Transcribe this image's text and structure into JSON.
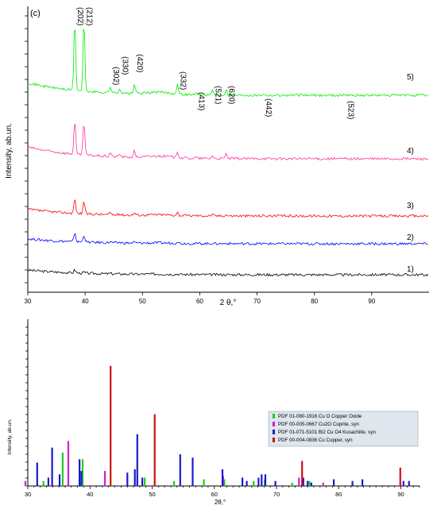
{
  "chart_data": [
    {
      "type": "line",
      "panel_label": "(c)",
      "xlabel": "2 θ,°",
      "ylabel": "Intensity, ab.un.",
      "xlim": [
        30,
        100
      ],
      "xticks": [
        30,
        40,
        50,
        60,
        70,
        80,
        90
      ],
      "peak_labels": [
        {
          "text": "(202)",
          "x": 38.2
        },
        {
          "text": "(212)",
          "x": 39.8
        },
        {
          "text": "(302)",
          "x": 44.4
        },
        {
          "text": "(330)",
          "x": 46.0
        },
        {
          "text": "(420)",
          "x": 48.6
        },
        {
          "text": "(332)",
          "x": 56.1
        },
        {
          "text": "(413)",
          "x": 59.3
        },
        {
          "text": "(521)",
          "x": 62.2
        },
        {
          "text": "(620)",
          "x": 64.6
        },
        {
          "text": "(442)",
          "x": 71.0
        },
        {
          "text": "(523)",
          "x": 85.4
        }
      ],
      "peak_positions": [
        38.2,
        39.8,
        44.4,
        46.0,
        48.6,
        56.1,
        59.3,
        62.2,
        64.6,
        71.0,
        85.4
      ],
      "series": [
        {
          "name": "1)",
          "color": "#000000",
          "scale": 0.35,
          "peaks": [
            0.15,
            0.05,
            0.02,
            0.0,
            0.0,
            0.02,
            0.0,
            0.0,
            0.0,
            0.0,
            0.0
          ]
        },
        {
          "name": "2)",
          "color": "#0000ff",
          "scale": 0.45,
          "peaks": [
            0.45,
            0.35,
            0.05,
            0.03,
            0.05,
            0.1,
            0.0,
            0.02,
            0.03,
            0.0,
            0.0
          ]
        },
        {
          "name": "3)",
          "color": "#ff0000",
          "scale": 0.55,
          "peaks": [
            0.7,
            0.6,
            0.1,
            0.05,
            0.12,
            0.15,
            0.02,
            0.06,
            0.06,
            0.02,
            0.0
          ]
        },
        {
          "name": "4)",
          "color": "#ff3399",
          "scale": 0.75,
          "peaks": [
            1.6,
            1.6,
            0.2,
            0.15,
            0.3,
            0.3,
            0.05,
            0.15,
            0.22,
            0.04,
            0.02
          ]
        },
        {
          "name": "5)",
          "color": "#00ee00",
          "scale": 0.8,
          "peaks": [
            3.4,
            3.4,
            0.3,
            0.25,
            0.45,
            0.45,
            0.08,
            0.2,
            0.3,
            0.07,
            0.04
          ]
        }
      ]
    },
    {
      "type": "bar",
      "xlabel": "2θ,°",
      "ylabel": "Intensity, ab.un.",
      "xlim": [
        30,
        93
      ],
      "ylim": [
        0,
        1
      ],
      "xticks": [
        30,
        40,
        50,
        60,
        70,
        80,
        90
      ],
      "legend_position": "right",
      "legend": [
        {
          "label": "PDF 01-080-1916 Cu O Copper Oxide",
          "color": "#22cc22"
        },
        {
          "label": "PDF 00-005-0667 Cu2O Cuprite, syn",
          "color": "#cc22cc"
        },
        {
          "label": "PDF 01-071-5101 Bi2 Cu O4 Kusachiite, syn",
          "color": "#1a1acc"
        },
        {
          "label": "PDF 00-004-0836 Cu Copper, syn",
          "color": "#cc1111"
        }
      ],
      "series": [
        {
          "name": "PDF 01-080-1916 Cu O Copper Oxide",
          "color": "#22cc22",
          "x": [
            32.5,
            35.6,
            38.8,
            48.8,
            53.5,
            58.3,
            61.6,
            66.3,
            68.1,
            72.5,
            75.3
          ],
          "values": [
            0.03,
            0.2,
            0.16,
            0.05,
            0.03,
            0.04,
            0.04,
            0.03,
            0.04,
            0.02,
            0.03
          ]
        },
        {
          "name": "PDF 00-005-0667 Cu2O Cuprite, syn",
          "color": "#cc22cc",
          "x": [
            29.6,
            36.5,
            42.4,
            61.4,
            73.6,
            77.5
          ],
          "values": [
            0.03,
            0.27,
            0.09,
            0.06,
            0.05,
            0.02
          ]
        },
        {
          "name": "PDF 01-071-5101 Bi2 Cu O4 Kusachiite, syn",
          "color": "#1a1acc",
          "x": [
            31.5,
            33.3,
            33.9,
            35.1,
            38.3,
            38.6,
            46.0,
            47.2,
            47.6,
            48.4,
            54.5,
            56.5,
            61.3,
            64.5,
            65.2,
            67.1,
            67.6,
            68.2,
            69.8,
            74.3,
            75.0,
            75.6,
            79.2,
            82.2,
            83.8,
            90.4,
            91.3
          ],
          "values": [
            0.14,
            0.05,
            0.23,
            0.07,
            0.16,
            0.09,
            0.08,
            0.1,
            0.31,
            0.05,
            0.19,
            0.17,
            0.1,
            0.05,
            0.03,
            0.05,
            0.07,
            0.07,
            0.03,
            0.05,
            0.03,
            0.02,
            0.04,
            0.03,
            0.04,
            0.03,
            0.03
          ]
        },
        {
          "name": "PDF 00-004-0836 Cu Copper, syn",
          "color": "#cc1111",
          "x": [
            43.3,
            50.4,
            74.1,
            89.9
          ],
          "values": [
            0.72,
            0.43,
            0.15,
            0.11
          ]
        }
      ]
    }
  ]
}
